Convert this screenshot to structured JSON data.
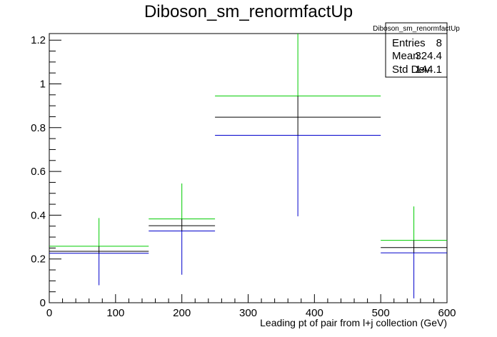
{
  "chart_data": {
    "type": "histogram-errorbars",
    "title": "Diboson_sm_renormfactUp",
    "xlabel": "Leading pt of pair from l+j collection (GeV)",
    "ylabel": "",
    "xlim": [
      0,
      600
    ],
    "ylim": [
      0,
      1.23
    ],
    "xticks": [
      0,
      100,
      200,
      300,
      400,
      500,
      600
    ],
    "yticks": [
      0,
      0.2,
      0.4,
      0.6,
      0.8,
      1,
      1.2
    ],
    "bins": [
      {
        "x0": 0,
        "x1": 150,
        "center": 75,
        "nominal": 0.235,
        "up": 0.258,
        "down": 0.226,
        "err_low": 0.08,
        "err_high": 0.387
      },
      {
        "x0": 150,
        "x1": 250,
        "center": 200,
        "nominal": 0.352,
        "up": 0.383,
        "down": 0.328,
        "err_low": 0.128,
        "err_high": 0.545
      },
      {
        "x0": 250,
        "x1": 500,
        "center": 375,
        "nominal": 0.848,
        "up": 0.945,
        "down": 0.765,
        "err_low": 0.395,
        "err_high": 1.23
      },
      {
        "x0": 500,
        "x1": 600,
        "center": 550,
        "nominal": 0.252,
        "up": 0.285,
        "down": 0.228,
        "err_low": 0.02,
        "err_high": 0.44
      }
    ],
    "series": [
      {
        "role": "nominal",
        "color": "#000000"
      },
      {
        "role": "up",
        "color": "#00cc00"
      },
      {
        "role": "down",
        "color": "#0000cc"
      }
    ],
    "stats": {
      "title": "Diboson_sm_renormfactUp",
      "rows": [
        {
          "label": "Entries",
          "value": "8"
        },
        {
          "label": "Mean",
          "value": "324.4"
        },
        {
          "label": "Std Dev",
          "value": "144.1"
        }
      ]
    }
  }
}
